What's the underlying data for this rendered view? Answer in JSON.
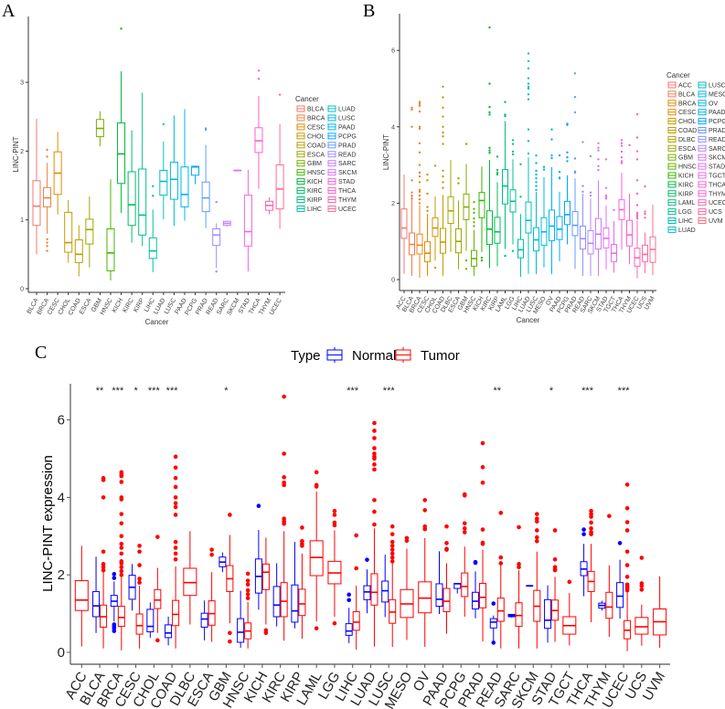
{
  "panel_labels": {
    "a": "A",
    "b": "B",
    "c": "C"
  },
  "palette": "ggplot-default-hue",
  "chart_data": [
    {
      "id": "A",
      "type": "boxplot",
      "xlabel": "Cancer",
      "ylabel": "LINC-PINT",
      "legend_title": "Cancer",
      "legend_placement": "right",
      "ylim": [
        0,
        3.8
      ],
      "yticks": [
        0,
        1,
        2,
        3
      ],
      "categories": [
        "BLCA",
        "BRCA",
        "CESC",
        "CHOL",
        "COAD",
        "ESCA",
        "GBM",
        "HNSC",
        "KICH",
        "KIRC",
        "KIRP",
        "LIHC",
        "LUAD",
        "LUSC",
        "PAAD",
        "PCPG",
        "PRAD",
        "READ",
        "SARC",
        "SKCM",
        "STAD",
        "THCA",
        "THYM",
        "UCEC"
      ],
      "stats_order": [
        "whisker_low",
        "q1",
        "median",
        "q3",
        "whisker_high"
      ],
      "stats": [
        [
          0.5,
          0.92,
          1.2,
          1.57,
          2.47
        ],
        [
          0.8,
          1.19,
          1.32,
          1.47,
          1.83
        ],
        [
          1.08,
          1.37,
          1.68,
          1.99,
          2.28
        ],
        [
          0.38,
          0.53,
          0.67,
          1.11,
          1.29
        ],
        [
          0.18,
          0.38,
          0.5,
          0.71,
          0.92
        ],
        [
          0.31,
          0.65,
          0.86,
          1.01,
          1.34
        ],
        [
          2.07,
          2.21,
          2.33,
          2.46,
          2.58
        ],
        [
          0.12,
          0.26,
          0.52,
          0.87,
          1.59
        ],
        [
          1.1,
          1.53,
          1.96,
          2.41,
          3.16
        ],
        [
          0.67,
          0.92,
          1.22,
          1.7,
          2.3
        ],
        [
          0.62,
          0.78,
          1.07,
          1.74,
          2.85
        ],
        [
          0.24,
          0.44,
          0.55,
          0.74,
          1.15
        ],
        [
          1.01,
          1.36,
          1.56,
          1.72,
          2.14
        ],
        [
          0.91,
          1.3,
          1.59,
          1.84,
          2.52
        ],
        [
          0.99,
          1.19,
          1.37,
          1.77,
          2.61
        ],
        [
          1.52,
          1.65,
          1.77,
          1.78,
          1.79
        ],
        [
          0.88,
          1.12,
          1.32,
          1.55,
          2.09
        ],
        [
          0.3,
          0.63,
          0.78,
          0.87,
          0.95
        ],
        [
          0.9,
          0.92,
          0.95,
          0.98,
          0.99
        ],
        [
          1.72,
          1.72,
          1.72,
          1.72,
          1.72
        ],
        [
          0.25,
          0.62,
          0.83,
          1.36,
          1.73
        ],
        [
          1.45,
          1.98,
          2.15,
          2.34,
          2.8
        ],
        [
          1.08,
          1.14,
          1.21,
          1.27,
          1.33
        ],
        [
          0.87,
          1.16,
          1.45,
          1.8,
          2.39
        ]
      ],
      "outliers": [
        [],
        [
          2.02,
          1.92,
          0.72,
          0.67,
          0.62,
          0.55
        ],
        [],
        [],
        [],
        [],
        [],
        [],
        [
          3.78
        ],
        [],
        [],
        [
          1.49,
          1.35
        ],
        [
          2.39
        ],
        [],
        [],
        [],
        [
          2.33,
          2.31
        ],
        [
          1.26,
          0.25
        ],
        [],
        [],
        [],
        [
          3.17,
          3.05
        ],
        [],
        [
          2.82
        ]
      ]
    },
    {
      "id": "B",
      "type": "boxplot",
      "xlabel": "Cancer",
      "ylabel": "LINC-PINT",
      "legend_title": "Cancer",
      "legend_placement": "right",
      "ylim": [
        0,
        6.6
      ],
      "yticks": [
        0,
        2,
        4,
        6
      ],
      "categories": [
        "ACC",
        "BLCA",
        "BRCA",
        "CESC",
        "CHOL",
        "COAD",
        "DLBC",
        "ESCA",
        "GBM",
        "HNSC",
        "KICH",
        "KIRC",
        "KIRP",
        "LAML",
        "LGG",
        "LIHC",
        "LUAD",
        "LUSC",
        "MESO",
        "OV",
        "PAAD",
        "PCPG",
        "PRAD",
        "READ",
        "SARC",
        "SKCM",
        "STAD",
        "TGCT",
        "THCA",
        "THYM",
        "UCEC",
        "UCS",
        "UVM"
      ],
      "stats_order": [
        "whisker_low",
        "q1",
        "median",
        "q3",
        "whisker_high"
      ],
      "stats": [
        [
          0.15,
          1.08,
          1.35,
          1.85,
          2.75
        ],
        [
          0.1,
          0.65,
          0.92,
          1.22,
          2.2
        ],
        [
          0.05,
          0.67,
          0.9,
          1.19,
          1.95
        ],
        [
          0.1,
          0.47,
          0.69,
          0.99,
          1.72
        ],
        [
          0.5,
          1.13,
          1.35,
          1.62,
          2.18
        ],
        [
          0.1,
          0.69,
          0.98,
          1.34,
          2.22
        ],
        [
          0.72,
          1.47,
          1.8,
          2.17,
          3.13
        ],
        [
          0.27,
          0.7,
          1.0,
          1.33,
          2.07
        ],
        [
          0.75,
          1.57,
          1.9,
          2.24,
          3.03
        ],
        [
          0.1,
          0.35,
          0.55,
          0.76,
          1.3
        ],
        [
          0.72,
          1.62,
          2.07,
          2.28,
          2.96
        ],
        [
          0.3,
          0.92,
          1.32,
          1.8,
          3.13
        ],
        [
          0.35,
          0.95,
          1.25,
          1.63,
          2.55
        ],
        [
          0.8,
          1.98,
          2.45,
          2.88,
          4.15
        ],
        [
          0.92,
          1.77,
          2.05,
          2.35,
          3.15
        ],
        [
          0.07,
          0.57,
          0.78,
          1.05,
          1.72
        ],
        [
          0.15,
          1.22,
          1.55,
          2.03,
          3.2
        ],
        [
          0.14,
          0.75,
          1.04,
          1.36,
          2.3
        ],
        [
          0.32,
          0.9,
          1.25,
          1.62,
          2.68
        ],
        [
          0.14,
          1.02,
          1.4,
          1.82,
          2.95
        ],
        [
          0.48,
          1.05,
          1.32,
          1.65,
          2.3
        ],
        [
          0.92,
          1.44,
          1.7,
          2.05,
          2.73
        ],
        [
          0.28,
          1.15,
          1.42,
          1.78,
          2.65
        ],
        [
          0.1,
          0.8,
          1.07,
          1.4,
          2.25
        ],
        [
          0.1,
          0.67,
          0.95,
          1.28,
          2.12
        ],
        [
          0.1,
          0.8,
          1.19,
          1.6,
          2.6
        ],
        [
          0.27,
          0.83,
          1.08,
          1.35,
          1.95
        ],
        [
          0.18,
          0.47,
          0.69,
          0.92,
          1.53
        ],
        [
          0.78,
          1.57,
          1.83,
          2.09,
          2.8
        ],
        [
          0.4,
          0.88,
          1.17,
          1.55,
          2.25
        ],
        [
          0.03,
          0.35,
          0.57,
          0.82,
          1.55
        ],
        [
          0.17,
          0.47,
          0.66,
          0.9,
          1.23
        ],
        [
          0.12,
          0.45,
          0.79,
          1.12,
          1.96
        ]
      ],
      "outliers": [
        [],
        [
          4.5,
          4.45,
          4.0,
          2.6,
          2.28,
          2.2,
          2.12
        ],
        [
          4.65,
          4.6,
          4.55,
          4.4,
          4.0,
          3.95,
          3.57,
          3.33,
          3.0,
          2.8,
          2.7,
          2.55,
          2.35,
          2.3,
          2.2,
          2.1,
          2.0
        ],
        [
          2.75,
          2.6,
          2.25,
          1.9,
          1.8
        ],
        [
          2.98,
          0.31
        ],
        [
          5.05,
          4.77,
          4.5,
          4.27,
          4.0,
          3.85,
          3.75,
          3.55,
          2.85,
          2.7,
          2.55,
          2.4
        ],
        [],
        [
          2.65,
          2.52
        ],
        [
          3.55,
          0.5,
          0.28
        ],
        [
          2.03,
          1.85,
          1.75,
          1.6,
          1.5,
          1.4
        ],
        [
          0.57,
          0.5
        ],
        [
          6.6,
          5.13,
          4.52,
          4.38,
          4.32,
          3.45,
          3.38,
          3.32
        ],
        [
          3.22,
          2.87,
          2.8,
          2.75
        ],
        [
          4.65,
          4.32,
          4.28,
          0.62
        ],
        [
          3.65,
          3.55,
          3.35,
          3.28,
          0.75
        ],
        [
          3.02,
          2.17
        ],
        [
          5.92,
          5.72,
          5.53,
          5.27,
          5.13,
          5.05,
          5.0,
          4.85,
          4.72,
          3.93,
          3.63,
          3.3
        ],
        [
          3.25,
          3.05,
          2.85,
          2.75,
          2.65,
          2.55,
          2.45,
          2.35
        ],
        [
          2.95,
          2.88
        ],
        [
          3.93,
          3.67,
          3.25,
          3.18
        ],
        [
          3.25,
          2.82,
          2.67,
          2.65
        ],
        [
          4.08,
          4.05,
          3.33,
          3.2,
          3.1
        ],
        [
          5.4,
          4.78,
          4.38,
          3.17,
          2.83,
          2.8
        ],
        [
          3.6,
          2.45,
          2.3
        ],
        [
          3.23,
          2.28,
          2.2
        ],
        [
          3.57,
          3.45,
          3.38,
          3.15,
          2.97,
          2.87
        ],
        [
          3.15,
          2.4,
          2.2,
          2.15,
          2.12
        ],
        [
          1.82
        ],
        [
          3.65,
          3.57,
          3.5,
          3.35,
          3.2,
          3.1,
          3.05
        ],
        [
          3.52
        ],
        [
          4.33,
          3.72,
          3.36,
          3.15,
          2.6,
          2.25,
          1.95,
          1.75,
          1.7,
          1.65,
          1.6
        ],
        [
          2.44,
          1.78,
          1.72,
          1.62
        ],
        []
      ]
    },
    {
      "id": "C",
      "type": "boxplot",
      "xlabel": "",
      "ylabel": "LINC-PINT expression",
      "legend_title": "Type",
      "legend_placement": "top",
      "ylim": [
        0,
        6.6
      ],
      "yticks": [
        0,
        2,
        4,
        6
      ],
      "categories": [
        "ACC",
        "BLCA",
        "BRCA",
        "CESC",
        "CHOL",
        "COAD",
        "DLBC",
        "ESCA",
        "GBM",
        "HNSC",
        "KICH",
        "KIRC",
        "KIRP",
        "LAML",
        "LGG",
        "LIHC",
        "LUAD",
        "LUSC",
        "MESO",
        "OV",
        "PAAD",
        "PCPG",
        "PRAD",
        "READ",
        "SARC",
        "SKCM",
        "STAD",
        "TGCT",
        "THCA",
        "THYM",
        "UCEC",
        "UCS",
        "UVM"
      ],
      "significance": [
        "",
        "**",
        "***",
        "*",
        "***",
        "***",
        "",
        "",
        "*",
        "",
        "",
        "",
        "",
        "",
        "",
        "***",
        "",
        "***",
        "",
        "",
        "",
        "",
        "",
        "**",
        "",
        "",
        "*",
        "",
        "***",
        "",
        "***",
        "",
        ""
      ],
      "series": [
        {
          "name": "Normal",
          "color": "#0000FF"
        },
        {
          "name": "Tumor",
          "color": "#FF0000"
        }
      ],
      "stats_order": [
        "whisker_low",
        "q1",
        "median",
        "q3",
        "whisker_high"
      ],
      "normal_present": [
        false,
        true,
        true,
        true,
        true,
        true,
        false,
        true,
        true,
        true,
        true,
        true,
        true,
        false,
        false,
        true,
        true,
        true,
        false,
        false,
        true,
        true,
        true,
        true,
        true,
        true,
        true,
        false,
        true,
        true,
        true,
        false,
        false
      ],
      "normal_note": "Normal boxes share the values of panel A; Tumor boxes share the values of panel B"
    }
  ]
}
